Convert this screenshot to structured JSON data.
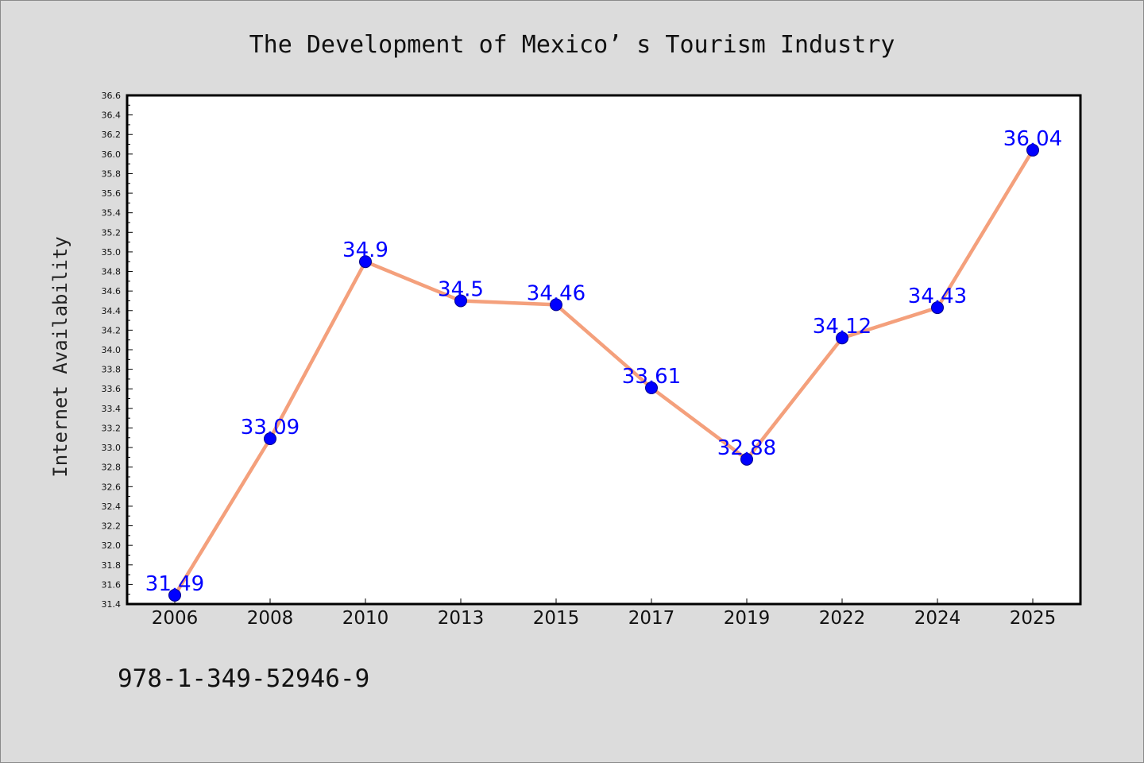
{
  "colors": {
    "background": "#dcdcdc",
    "plot_background": "#ffffff",
    "line": "#f4a07c",
    "marker": "#0000ff",
    "data_label": "#0000ff"
  },
  "footer": {
    "text": "978-1-349-52946-9"
  },
  "chart_data": {
    "type": "line",
    "title": "The Development of Mexico’ s Tourism Industry",
    "xlabel": "",
    "ylabel": "Internet Availability",
    "categories": [
      "2006",
      "2008",
      "2010",
      "2013",
      "2015",
      "2017",
      "2019",
      "2022",
      "2024",
      "2025"
    ],
    "series": [
      {
        "values": [
          31.49,
          33.09,
          34.9,
          34.5,
          34.46,
          33.61,
          32.88,
          34.12,
          34.43,
          36.04
        ]
      }
    ],
    "data_labels": [
      "31.49",
      "33.09",
      "34.9",
      "34.5",
      "34.46",
      "33.61",
      "32.88",
      "34.12",
      "34.43",
      "36.04"
    ],
    "ylim": [
      31.4,
      36.6
    ],
    "yticks": [
      "31.4",
      "31.6",
      "31.8",
      "32.0",
      "32.2",
      "32.4",
      "32.6",
      "32.8",
      "33.0",
      "33.2",
      "33.4",
      "33.6",
      "33.8",
      "34.0",
      "34.2",
      "34.4",
      "34.6",
      "34.8",
      "35.0",
      "35.2",
      "35.4",
      "35.6",
      "35.8",
      "36.0",
      "36.2",
      "36.4",
      "36.6"
    ],
    "grid": false,
    "legend": "none",
    "marker": "circle"
  }
}
